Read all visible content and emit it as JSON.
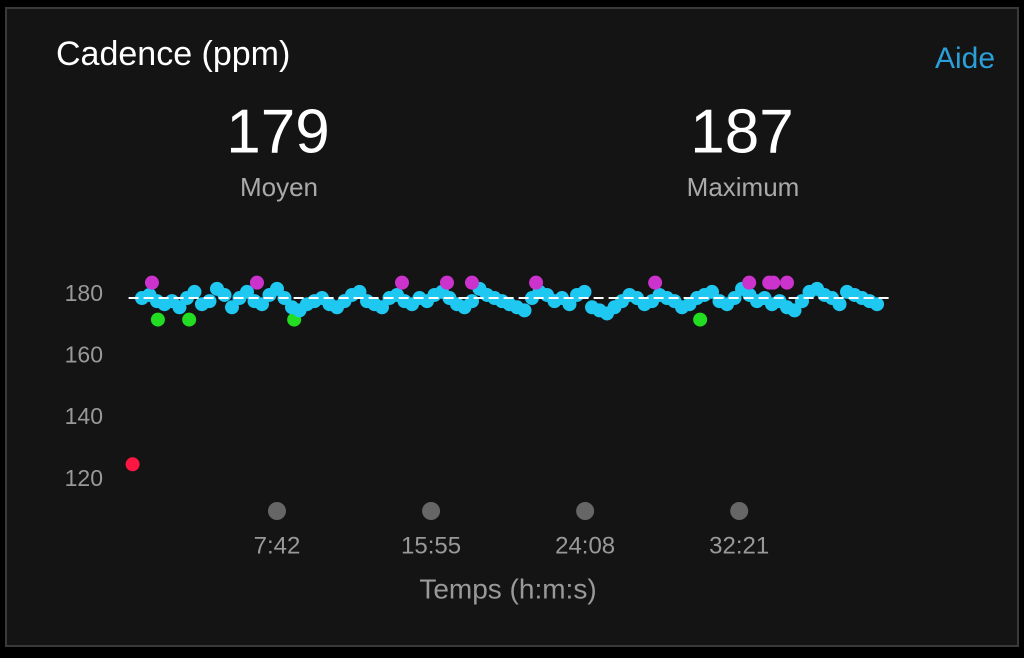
{
  "header": {
    "title": "Cadence (ppm)",
    "help": "Aide"
  },
  "stats": [
    {
      "value": 179,
      "label": "Moyen"
    },
    {
      "value": 187,
      "label": "Maximum"
    }
  ],
  "chart_data": {
    "type": "scatter",
    "x_label": "Temps (h:m:s)",
    "xlim": [
      0,
      2420
    ],
    "ylim": [
      116,
      186
    ],
    "xticks": [
      {
        "value": 462,
        "label": "7:42"
      },
      {
        "value": 955,
        "label": "15:55"
      },
      {
        "value": 1448,
        "label": "24:08"
      },
      {
        "value": 1941,
        "label": "32:21"
      }
    ],
    "yticks": [
      120,
      140,
      160,
      180
    ],
    "average": 179,
    "series": [
      {
        "color": "#ff1744",
        "x": [
          0
        ],
        "values": [
          125
        ]
      },
      {
        "color": "#22dd22",
        "x": [
          81,
          181,
          517,
          1816
        ],
        "values": [
          172,
          172,
          172,
          172
        ]
      },
      {
        "color": "#1ec8f0",
        "x": [
          30,
          54,
          78,
          102,
          126,
          150,
          174,
          198,
          222,
          246,
          270,
          294,
          318,
          342,
          366,
          390,
          414,
          438,
          462,
          486,
          510,
          534,
          558,
          582,
          606,
          630,
          654,
          678,
          702,
          726,
          750,
          774,
          798,
          822,
          846,
          870,
          894,
          918,
          942,
          966,
          990,
          1014,
          1038,
          1062,
          1086,
          1110,
          1134,
          1158,
          1182,
          1206,
          1230,
          1254,
          1278,
          1302,
          1326,
          1350,
          1374,
          1398,
          1422,
          1446,
          1470,
          1494,
          1518,
          1542,
          1566,
          1590,
          1614,
          1638,
          1662,
          1686,
          1710,
          1734,
          1758,
          1782,
          1806,
          1830,
          1854,
          1878,
          1902,
          1926,
          1950,
          1974,
          1998,
          2022,
          2046,
          2070,
          2094,
          2118,
          2142,
          2166,
          2190,
          2214,
          2238,
          2262,
          2286,
          2310,
          2334,
          2358,
          2382
        ],
        "values": [
          179,
          180,
          178,
          177,
          178,
          176,
          179,
          181,
          177,
          178,
          182,
          180,
          176,
          179,
          181,
          178,
          177,
          180,
          182,
          179,
          176,
          175,
          177,
          178,
          179,
          177,
          176,
          178,
          180,
          181,
          178,
          177,
          176,
          179,
          180,
          178,
          177,
          179,
          178,
          180,
          181,
          179,
          177,
          176,
          178,
          182,
          180,
          179,
          178,
          177,
          176,
          175,
          179,
          181,
          180,
          178,
          179,
          177,
          180,
          181,
          176,
          175,
          174,
          176,
          178,
          180,
          179,
          177,
          178,
          180,
          179,
          178,
          176,
          177,
          179,
          180,
          181,
          178,
          177,
          179,
          182,
          180,
          178,
          179,
          177,
          178,
          176,
          175,
          178,
          181,
          182,
          180,
          179,
          177,
          181,
          180,
          179,
          178,
          177
        ]
      },
      {
        "color": "#cc33cc",
        "x": [
          62,
          398,
          862,
          1006,
          1086,
          1291,
          1672,
          1973,
          2037,
          2050,
          2094
        ],
        "values": [
          184,
          184,
          184,
          184,
          184,
          184,
          184,
          184,
          184,
          184,
          184
        ]
      }
    ]
  }
}
